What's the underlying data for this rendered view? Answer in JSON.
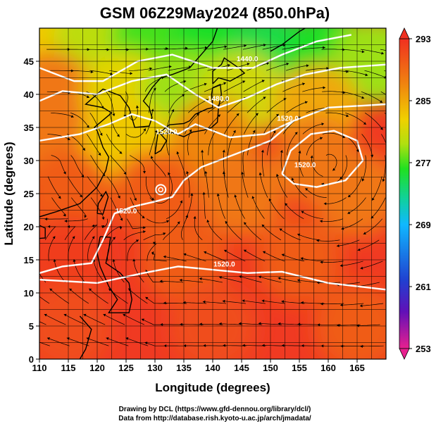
{
  "chart_data": {
    "type": "heatmap",
    "title": "GSM 06Z29May2024 (850.0hPa)",
    "xlabel": "Longitude (degrees)",
    "ylabel": "Latitude  (degrees)",
    "xlim": [
      110,
      170
    ],
    "ylim": [
      0,
      50
    ],
    "xticks": [
      110,
      115,
      120,
      125,
      130,
      135,
      140,
      145,
      150,
      155,
      160,
      165
    ],
    "yticks": [
      0,
      5,
      10,
      15,
      20,
      25,
      30,
      35,
      40,
      45
    ],
    "colorbar": {
      "min": 253,
      "max": 293,
      "ticks": [
        293,
        285,
        277,
        269,
        261,
        253
      ],
      "colors": [
        "#e8208f",
        "#6010b8",
        "#2040d0",
        "#10b8ff",
        "#10d0a0",
        "#20e020",
        "#b0e010",
        "#f0d000",
        "#f08010",
        "#f03020"
      ]
    },
    "contour_labels": [
      {
        "text": "1440.0",
        "lon": 146,
        "lat": 45
      },
      {
        "text": "1480.0",
        "lon": 141,
        "lat": 39
      },
      {
        "text": "1520.0",
        "lon": 132,
        "lat": 34
      },
      {
        "text": "1520.0",
        "lon": 153,
        "lat": 36
      },
      {
        "text": "1520.0",
        "lon": 156,
        "lat": 29
      },
      {
        "text": "1520.0",
        "lon": 142,
        "lat": 14
      },
      {
        "text": "1520.0",
        "lon": 125,
        "lat": 22
      }
    ],
    "temperature_field": [
      {
        "lon": 110,
        "lat": 48,
        "temp": 283
      },
      {
        "lon": 120,
        "lat": 48,
        "temp": 280
      },
      {
        "lon": 130,
        "lat": 48,
        "temp": 277
      },
      {
        "lon": 140,
        "lat": 47,
        "temp": 276
      },
      {
        "lon": 150,
        "lat": 46,
        "temp": 275
      },
      {
        "lon": 160,
        "lat": 46,
        "temp": 276
      },
      {
        "lon": 168,
        "lat": 45,
        "temp": 279
      },
      {
        "lon": 112,
        "lat": 40,
        "temp": 288
      },
      {
        "lon": 125,
        "lat": 40,
        "temp": 282
      },
      {
        "lon": 135,
        "lat": 40,
        "temp": 279
      },
      {
        "lon": 145,
        "lat": 40,
        "temp": 281
      },
      {
        "lon": 158,
        "lat": 38,
        "temp": 285
      },
      {
        "lon": 112,
        "lat": 33,
        "temp": 288
      },
      {
        "lon": 125,
        "lat": 33,
        "temp": 283
      },
      {
        "lon": 140,
        "lat": 33,
        "temp": 287
      },
      {
        "lon": 158,
        "lat": 30,
        "temp": 288
      },
      {
        "lon": 115,
        "lat": 25,
        "temp": 290
      },
      {
        "lon": 130,
        "lat": 25,
        "temp": 290
      },
      {
        "lon": 145,
        "lat": 25,
        "temp": 288
      },
      {
        "lon": 165,
        "lat": 25,
        "temp": 288
      },
      {
        "lon": 115,
        "lat": 15,
        "temp": 292
      },
      {
        "lon": 135,
        "lat": 15,
        "temp": 290
      },
      {
        "lon": 155,
        "lat": 15,
        "temp": 290
      },
      {
        "lon": 115,
        "lat": 5,
        "temp": 291
      },
      {
        "lon": 140,
        "lat": 5,
        "temp": 291
      },
      {
        "lon": 165,
        "lat": 5,
        "temp": 290
      }
    ]
  },
  "credits": {
    "line1": "Drawing by DCL (https://www.gfd-dennou.org/library/dcl/)",
    "line2": "Data from http://database.rish.kyoto-u.ac.jp/arch/jmadata/"
  }
}
